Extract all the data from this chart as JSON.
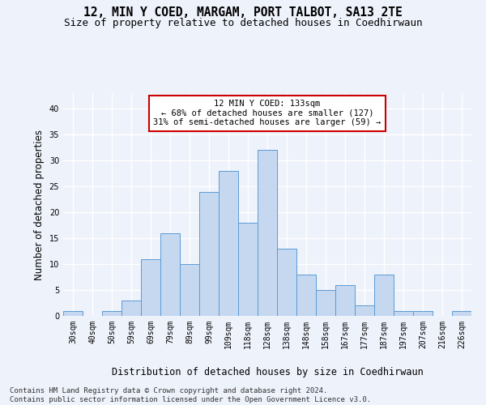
{
  "title": "12, MIN Y COED, MARGAM, PORT TALBOT, SA13 2TE",
  "subtitle": "Size of property relative to detached houses in Coedhirwaun",
  "xlabel": "Distribution of detached houses by size in Coedhirwaun",
  "ylabel": "Number of detached properties",
  "footer_line1": "Contains HM Land Registry data © Crown copyright and database right 2024.",
  "footer_line2": "Contains public sector information licensed under the Open Government Licence v3.0.",
  "bin_labels": [
    "30sqm",
    "40sqm",
    "50sqm",
    "59sqm",
    "69sqm",
    "79sqm",
    "89sqm",
    "99sqm",
    "109sqm",
    "118sqm",
    "128sqm",
    "138sqm",
    "148sqm",
    "158sqm",
    "167sqm",
    "177sqm",
    "187sqm",
    "197sqm",
    "207sqm",
    "216sqm",
    "226sqm"
  ],
  "bar_heights": [
    1,
    0,
    1,
    3,
    11,
    16,
    10,
    24,
    28,
    18,
    32,
    13,
    8,
    5,
    6,
    2,
    8,
    1,
    1,
    0,
    1
  ],
  "bar_color": "#c5d8f0",
  "bar_edge_color": "#5b9bd5",
  "annotation_text": "12 MIN Y COED: 133sqm\n← 68% of detached houses are smaller (127)\n31% of semi-detached houses are larger (59) →",
  "annotation_box_color": "#ffffff",
  "annotation_box_edge_color": "#cc0000",
  "ylim": [
    0,
    43
  ],
  "yticks": [
    0,
    5,
    10,
    15,
    20,
    25,
    30,
    35,
    40
  ],
  "background_color": "#eef2fb",
  "grid_color": "#ffffff",
  "title_fontsize": 10.5,
  "subtitle_fontsize": 9,
  "axis_label_fontsize": 8.5,
  "tick_fontsize": 7,
  "annotation_fontsize": 7.5,
  "footer_fontsize": 6.5
}
